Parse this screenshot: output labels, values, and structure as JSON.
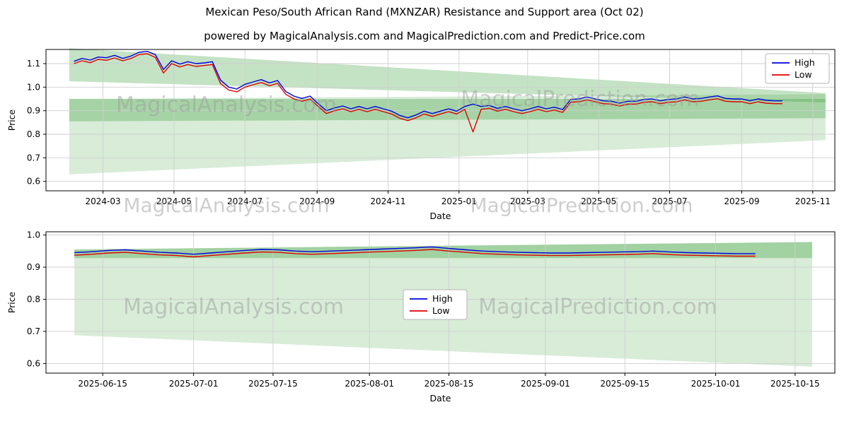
{
  "header": {
    "title": "Mexican Peso/South African Rand (MXNZAR) Resistance and Support area (Oct 02)",
    "subtitle": "powered by MagicalAnalysis.com and MagicalPrediction.com and Predict-Price.com"
  },
  "watermarks": {
    "analysis": "MagicalAnalysis.com",
    "prediction": "MagicalPrediction.com"
  },
  "colors": {
    "high": "#0000dd",
    "low": "#dd0000",
    "band": "#3c9e3c",
    "grid": "#cfcfcf",
    "watermark": "#9e9e9e"
  },
  "chart_data": [
    {
      "type": "line",
      "title": "",
      "xlabel": "Date",
      "ylabel": "Price",
      "xlim": [
        "2024-01-12",
        "2025-11-20"
      ],
      "ylim": [
        0.56,
        1.16
      ],
      "yticks": [
        0.6,
        0.7,
        0.8,
        0.9,
        1.0,
        1.1
      ],
      "xticks": [
        {
          "d": "2024-03-01",
          "label": "2024-03"
        },
        {
          "d": "2024-05-01",
          "label": "2024-05"
        },
        {
          "d": "2024-07-01",
          "label": "2024-07"
        },
        {
          "d": "2024-09-01",
          "label": "2024-09"
        },
        {
          "d": "2024-11-01",
          "label": "2024-11"
        },
        {
          "d": "2025-01-01",
          "label": "2025-01"
        },
        {
          "d": "2025-03-01",
          "label": "2025-03"
        },
        {
          "d": "2025-05-01",
          "label": "2025-05"
        },
        {
          "d": "2025-07-01",
          "label": "2025-07"
        },
        {
          "d": "2025-09-01",
          "label": "2025-09"
        },
        {
          "d": "2025-11-01",
          "label": "2025-11"
        }
      ],
      "legend_pos": "upper-right",
      "x": [
        "2024-02-05",
        "2024-02-12",
        "2024-02-19",
        "2024-02-26",
        "2024-03-04",
        "2024-03-11",
        "2024-03-18",
        "2024-03-25",
        "2024-04-01",
        "2024-04-08",
        "2024-04-15",
        "2024-04-22",
        "2024-04-29",
        "2024-05-06",
        "2024-05-13",
        "2024-05-20",
        "2024-05-27",
        "2024-06-03",
        "2024-06-10",
        "2024-06-17",
        "2024-06-24",
        "2024-07-01",
        "2024-07-08",
        "2024-07-15",
        "2024-07-22",
        "2024-07-29",
        "2024-08-05",
        "2024-08-12",
        "2024-08-19",
        "2024-08-26",
        "2024-09-02",
        "2024-09-09",
        "2024-09-16",
        "2024-09-23",
        "2024-09-30",
        "2024-10-07",
        "2024-10-14",
        "2024-10-21",
        "2024-10-28",
        "2024-11-04",
        "2024-11-11",
        "2024-11-18",
        "2024-11-25",
        "2024-12-02",
        "2024-12-09",
        "2024-12-16",
        "2024-12-23",
        "2024-12-30",
        "2025-01-06",
        "2025-01-13",
        "2025-01-20",
        "2025-01-27",
        "2025-02-03",
        "2025-02-10",
        "2025-02-17",
        "2025-02-24",
        "2025-03-03",
        "2025-03-10",
        "2025-03-17",
        "2025-03-24",
        "2025-03-31",
        "2025-04-07",
        "2025-04-14",
        "2025-04-21",
        "2025-04-28",
        "2025-05-05",
        "2025-05-12",
        "2025-05-19",
        "2025-05-26",
        "2025-06-02",
        "2025-06-09",
        "2025-06-16",
        "2025-06-23",
        "2025-06-30",
        "2025-07-07",
        "2025-07-14",
        "2025-07-21",
        "2025-07-28",
        "2025-08-04",
        "2025-08-11",
        "2025-08-18",
        "2025-08-25",
        "2025-09-01",
        "2025-09-08",
        "2025-09-15",
        "2025-09-22",
        "2025-09-29",
        "2025-10-06"
      ],
      "series": [
        {
          "name": "High",
          "color_key": "high",
          "values": [
            1.11,
            1.122,
            1.115,
            1.128,
            1.125,
            1.135,
            1.122,
            1.132,
            1.148,
            1.152,
            1.138,
            1.075,
            1.112,
            1.098,
            1.108,
            1.1,
            1.103,
            1.108,
            1.03,
            1.0,
            0.992,
            1.012,
            1.022,
            1.032,
            1.018,
            1.028,
            0.982,
            0.962,
            0.952,
            0.962,
            0.93,
            0.9,
            0.912,
            0.92,
            0.908,
            0.918,
            0.908,
            0.918,
            0.908,
            0.898,
            0.88,
            0.87,
            0.882,
            0.898,
            0.888,
            0.898,
            0.908,
            0.898,
            0.918,
            0.928,
            0.918,
            0.922,
            0.91,
            0.918,
            0.908,
            0.9,
            0.908,
            0.918,
            0.908,
            0.915,
            0.905,
            0.948,
            0.95,
            0.958,
            0.95,
            0.942,
            0.94,
            0.932,
            0.94,
            0.94,
            0.948,
            0.95,
            0.942,
            0.948,
            0.95,
            0.958,
            0.95,
            0.952,
            0.958,
            0.963,
            0.952,
            0.95,
            0.95,
            0.942,
            0.95,
            0.944,
            0.942,
            0.942
          ]
        },
        {
          "name": "Low",
          "color_key": "low",
          "values": [
            1.1,
            1.112,
            1.104,
            1.118,
            1.114,
            1.124,
            1.112,
            1.122,
            1.138,
            1.142,
            1.126,
            1.06,
            1.1,
            1.086,
            1.096,
            1.088,
            1.092,
            1.096,
            1.015,
            0.988,
            0.98,
            1.0,
            1.01,
            1.02,
            1.006,
            1.016,
            0.97,
            0.95,
            0.94,
            0.95,
            0.918,
            0.888,
            0.9,
            0.908,
            0.896,
            0.906,
            0.896,
            0.906,
            0.896,
            0.886,
            0.868,
            0.858,
            0.87,
            0.886,
            0.876,
            0.886,
            0.896,
            0.886,
            0.906,
            0.81,
            0.906,
            0.91,
            0.898,
            0.906,
            0.896,
            0.888,
            0.896,
            0.906,
            0.896,
            0.903,
            0.893,
            0.936,
            0.938,
            0.946,
            0.938,
            0.93,
            0.928,
            0.92,
            0.928,
            0.928,
            0.936,
            0.938,
            0.93,
            0.936,
            0.938,
            0.946,
            0.938,
            0.94,
            0.946,
            0.951,
            0.94,
            0.938,
            0.938,
            0.93,
            0.938,
            0.932,
            0.93,
            0.93
          ]
        }
      ],
      "bands": [
        {
          "alpha": 0.3,
          "pts": [
            [
              "2024-02-01",
              1.165
            ],
            [
              "2025-11-12",
              0.975
            ],
            [
              "2025-11-12",
              0.935
            ],
            [
              "2024-02-01",
              1.025
            ]
          ]
        },
        {
          "alpha": 0.32,
          "pts": [
            [
              "2024-02-01",
              0.95
            ],
            [
              "2025-11-12",
              0.95
            ],
            [
              "2025-11-12",
              0.868
            ],
            [
              "2024-02-01",
              0.855
            ]
          ]
        },
        {
          "alpha": 0.2,
          "pts": [
            [
              "2024-02-01",
              0.95
            ],
            [
              "2025-11-12",
              0.97
            ],
            [
              "2025-11-12",
              0.775
            ],
            [
              "2024-02-01",
              0.63
            ]
          ]
        }
      ]
    },
    {
      "type": "line",
      "title": "",
      "xlabel": "Date",
      "ylabel": "Price",
      "xlim": [
        "2025-06-05",
        "2025-10-22"
      ],
      "ylim": [
        0.57,
        1.01
      ],
      "yticks": [
        0.6,
        0.7,
        0.8,
        0.9,
        1.0
      ],
      "xticks": [
        {
          "d": "2025-06-15",
          "label": "2025-06-15"
        },
        {
          "d": "2025-07-01",
          "label": "2025-07-01"
        },
        {
          "d": "2025-07-15",
          "label": "2025-07-15"
        },
        {
          "d": "2025-08-01",
          "label": "2025-08-01"
        },
        {
          "d": "2025-08-15",
          "label": "2025-08-15"
        },
        {
          "d": "2025-09-01",
          "label": "2025-09-01"
        },
        {
          "d": "2025-09-15",
          "label": "2025-09-15"
        },
        {
          "d": "2025-10-01",
          "label": "2025-10-01"
        },
        {
          "d": "2025-10-15",
          "label": "2025-10-15"
        }
      ],
      "legend_pos": "center",
      "x": [
        "2025-06-10",
        "2025-06-13",
        "2025-06-16",
        "2025-06-19",
        "2025-06-22",
        "2025-06-25",
        "2025-06-28",
        "2025-07-01",
        "2025-07-04",
        "2025-07-07",
        "2025-07-10",
        "2025-07-13",
        "2025-07-16",
        "2025-07-19",
        "2025-07-22",
        "2025-07-25",
        "2025-07-28",
        "2025-07-31",
        "2025-08-03",
        "2025-08-06",
        "2025-08-09",
        "2025-08-12",
        "2025-08-15",
        "2025-08-18",
        "2025-08-21",
        "2025-08-24",
        "2025-08-27",
        "2025-08-30",
        "2025-09-02",
        "2025-09-05",
        "2025-09-08",
        "2025-09-11",
        "2025-09-14",
        "2025-09-17",
        "2025-09-20",
        "2025-09-23",
        "2025-09-26",
        "2025-09-29",
        "2025-10-02",
        "2025-10-05",
        "2025-10-08"
      ],
      "series": [
        {
          "name": "High",
          "color_key": "high",
          "values": [
            0.945,
            0.948,
            0.952,
            0.954,
            0.95,
            0.946,
            0.944,
            0.94,
            0.944,
            0.948,
            0.952,
            0.955,
            0.954,
            0.95,
            0.948,
            0.95,
            0.952,
            0.954,
            0.956,
            0.958,
            0.96,
            0.963,
            0.958,
            0.954,
            0.95,
            0.948,
            0.946,
            0.945,
            0.944,
            0.944,
            0.945,
            0.946,
            0.947,
            0.948,
            0.95,
            0.947,
            0.945,
            0.944,
            0.943,
            0.942,
            0.942
          ]
        },
        {
          "name": "Low",
          "color_key": "low",
          "values": [
            0.937,
            0.94,
            0.944,
            0.946,
            0.942,
            0.938,
            0.936,
            0.932,
            0.936,
            0.94,
            0.944,
            0.947,
            0.946,
            0.942,
            0.94,
            0.942,
            0.944,
            0.946,
            0.948,
            0.95,
            0.952,
            0.955,
            0.95,
            0.946,
            0.942,
            0.94,
            0.938,
            0.937,
            0.936,
            0.936,
            0.937,
            0.938,
            0.939,
            0.94,
            0.942,
            0.939,
            0.937,
            0.936,
            0.935,
            0.934,
            0.934
          ]
        }
      ],
      "bands": [
        {
          "alpha": 0.34,
          "pts": [
            [
              "2025-06-10",
              0.955
            ],
            [
              "2025-10-18",
              0.978
            ],
            [
              "2025-10-18",
              0.928
            ],
            [
              "2025-06-10",
              0.928
            ]
          ]
        },
        {
          "alpha": 0.2,
          "pts": [
            [
              "2025-06-10",
              0.955
            ],
            [
              "2025-10-18",
              0.978
            ],
            [
              "2025-10-18",
              0.59
            ],
            [
              "2025-06-10",
              0.688
            ]
          ]
        }
      ]
    }
  ]
}
